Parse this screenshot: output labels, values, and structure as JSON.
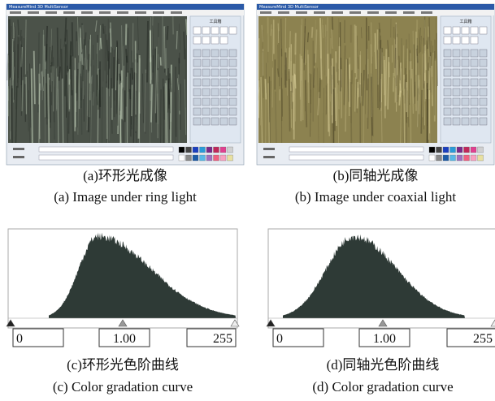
{
  "screens": [
    {
      "app_title": "MeasureMind 3D MultiSensor",
      "toolbox_title": "工具箱",
      "caption_zh": "(a)环形光成像",
      "caption_en": "(a) Image under ring light"
    },
    {
      "app_title": "MeasureMind 3D MultiSensor",
      "toolbox_title": "工具箱",
      "caption_zh": "(b)同轴光成像",
      "caption_en": "(b) Image under coaxial light"
    }
  ],
  "histograms": [
    {
      "inputs": [
        "0",
        "1.00",
        "255"
      ],
      "caption_zh": "(c)环形光色阶曲线",
      "caption_en": "(c) Color gradation curve"
    },
    {
      "inputs": [
        "0",
        "1.00",
        "255"
      ],
      "caption_zh": "(d)同轴光色阶曲线",
      "caption_en": "(d) Color gradation curve"
    }
  ]
}
